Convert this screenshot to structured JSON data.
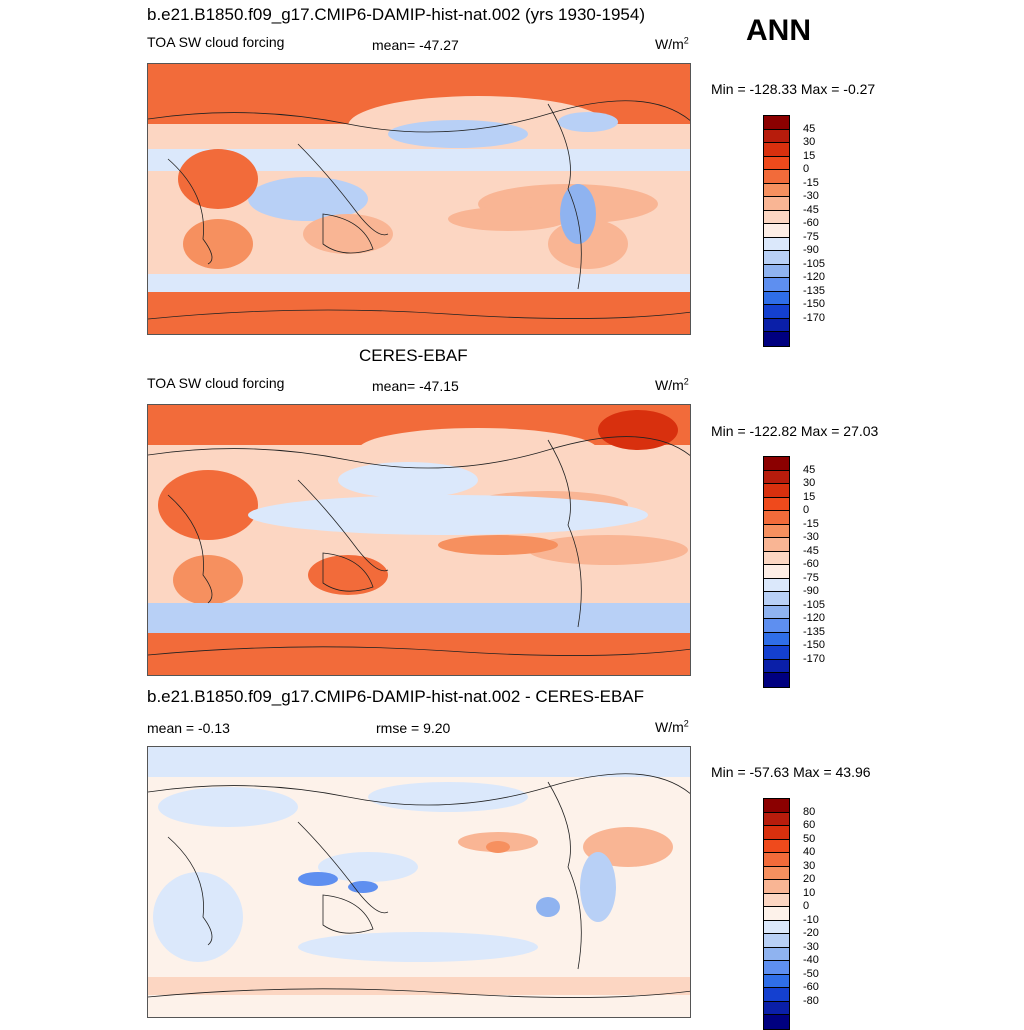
{
  "season": "ANN",
  "panels": [
    {
      "title": "b.e21.B1850.f09_g17.CMIP6-DAMIP-hist-nat.002 (yrs 1930-1954)",
      "left_label": "TOA SW cloud forcing",
      "center_label": "mean= -47.27",
      "unit_base": "W/m",
      "unit_exp": "2",
      "minmax": "Min = -128.33 Max =  -0.27"
    },
    {
      "title": "CERES-EBAF",
      "left_label": "TOA SW cloud forcing",
      "center_label": "mean= -47.15",
      "unit_base": "W/m",
      "unit_exp": "2",
      "minmax": "Min = -122.82 Max =  27.03"
    },
    {
      "title": "b.e21.B1850.f09_g17.CMIP6-DAMIP-hist-nat.002 - CERES-EBAF",
      "left_label": "mean =  -0.13",
      "center_label": "rmse =   9.20",
      "unit_base": "W/m",
      "unit_exp": "2",
      "minmax": "Min = -57.63 Max =  43.96"
    }
  ],
  "colorbars": {
    "field": {
      "labels": [
        "45",
        "30",
        "15",
        "0",
        "-15",
        "-30",
        "-45",
        "-60",
        "-75",
        "-90",
        "-105",
        "-120",
        "-135",
        "-150",
        "-170"
      ],
      "colors": [
        "#8b0000",
        "#b71c0c",
        "#d8300e",
        "#ef4a1c",
        "#f26b3a",
        "#f6905f",
        "#f9b594",
        "#fcd6c2",
        "#fdeee6",
        "#dbe8fb",
        "#b8d0f6",
        "#8fb3f0",
        "#5e8ff0",
        "#2f6ee8",
        "#1440d0",
        "#0a1fa8",
        "#000080"
      ]
    },
    "diff": {
      "labels": [
        "80",
        "60",
        "50",
        "40",
        "30",
        "20",
        "10",
        "0",
        "-10",
        "-20",
        "-30",
        "-40",
        "-50",
        "-60",
        "-80"
      ],
      "colors": [
        "#8b0000",
        "#b71c0c",
        "#d8300e",
        "#ef4a1c",
        "#f26b3a",
        "#f6905f",
        "#f9b594",
        "#fcd6c2",
        "#fdf2ea",
        "#dbe8fb",
        "#b8d0f6",
        "#8fb3f0",
        "#5e8ff0",
        "#2f6ee8",
        "#1440d0",
        "#0a1fa8",
        "#000080"
      ]
    }
  }
}
